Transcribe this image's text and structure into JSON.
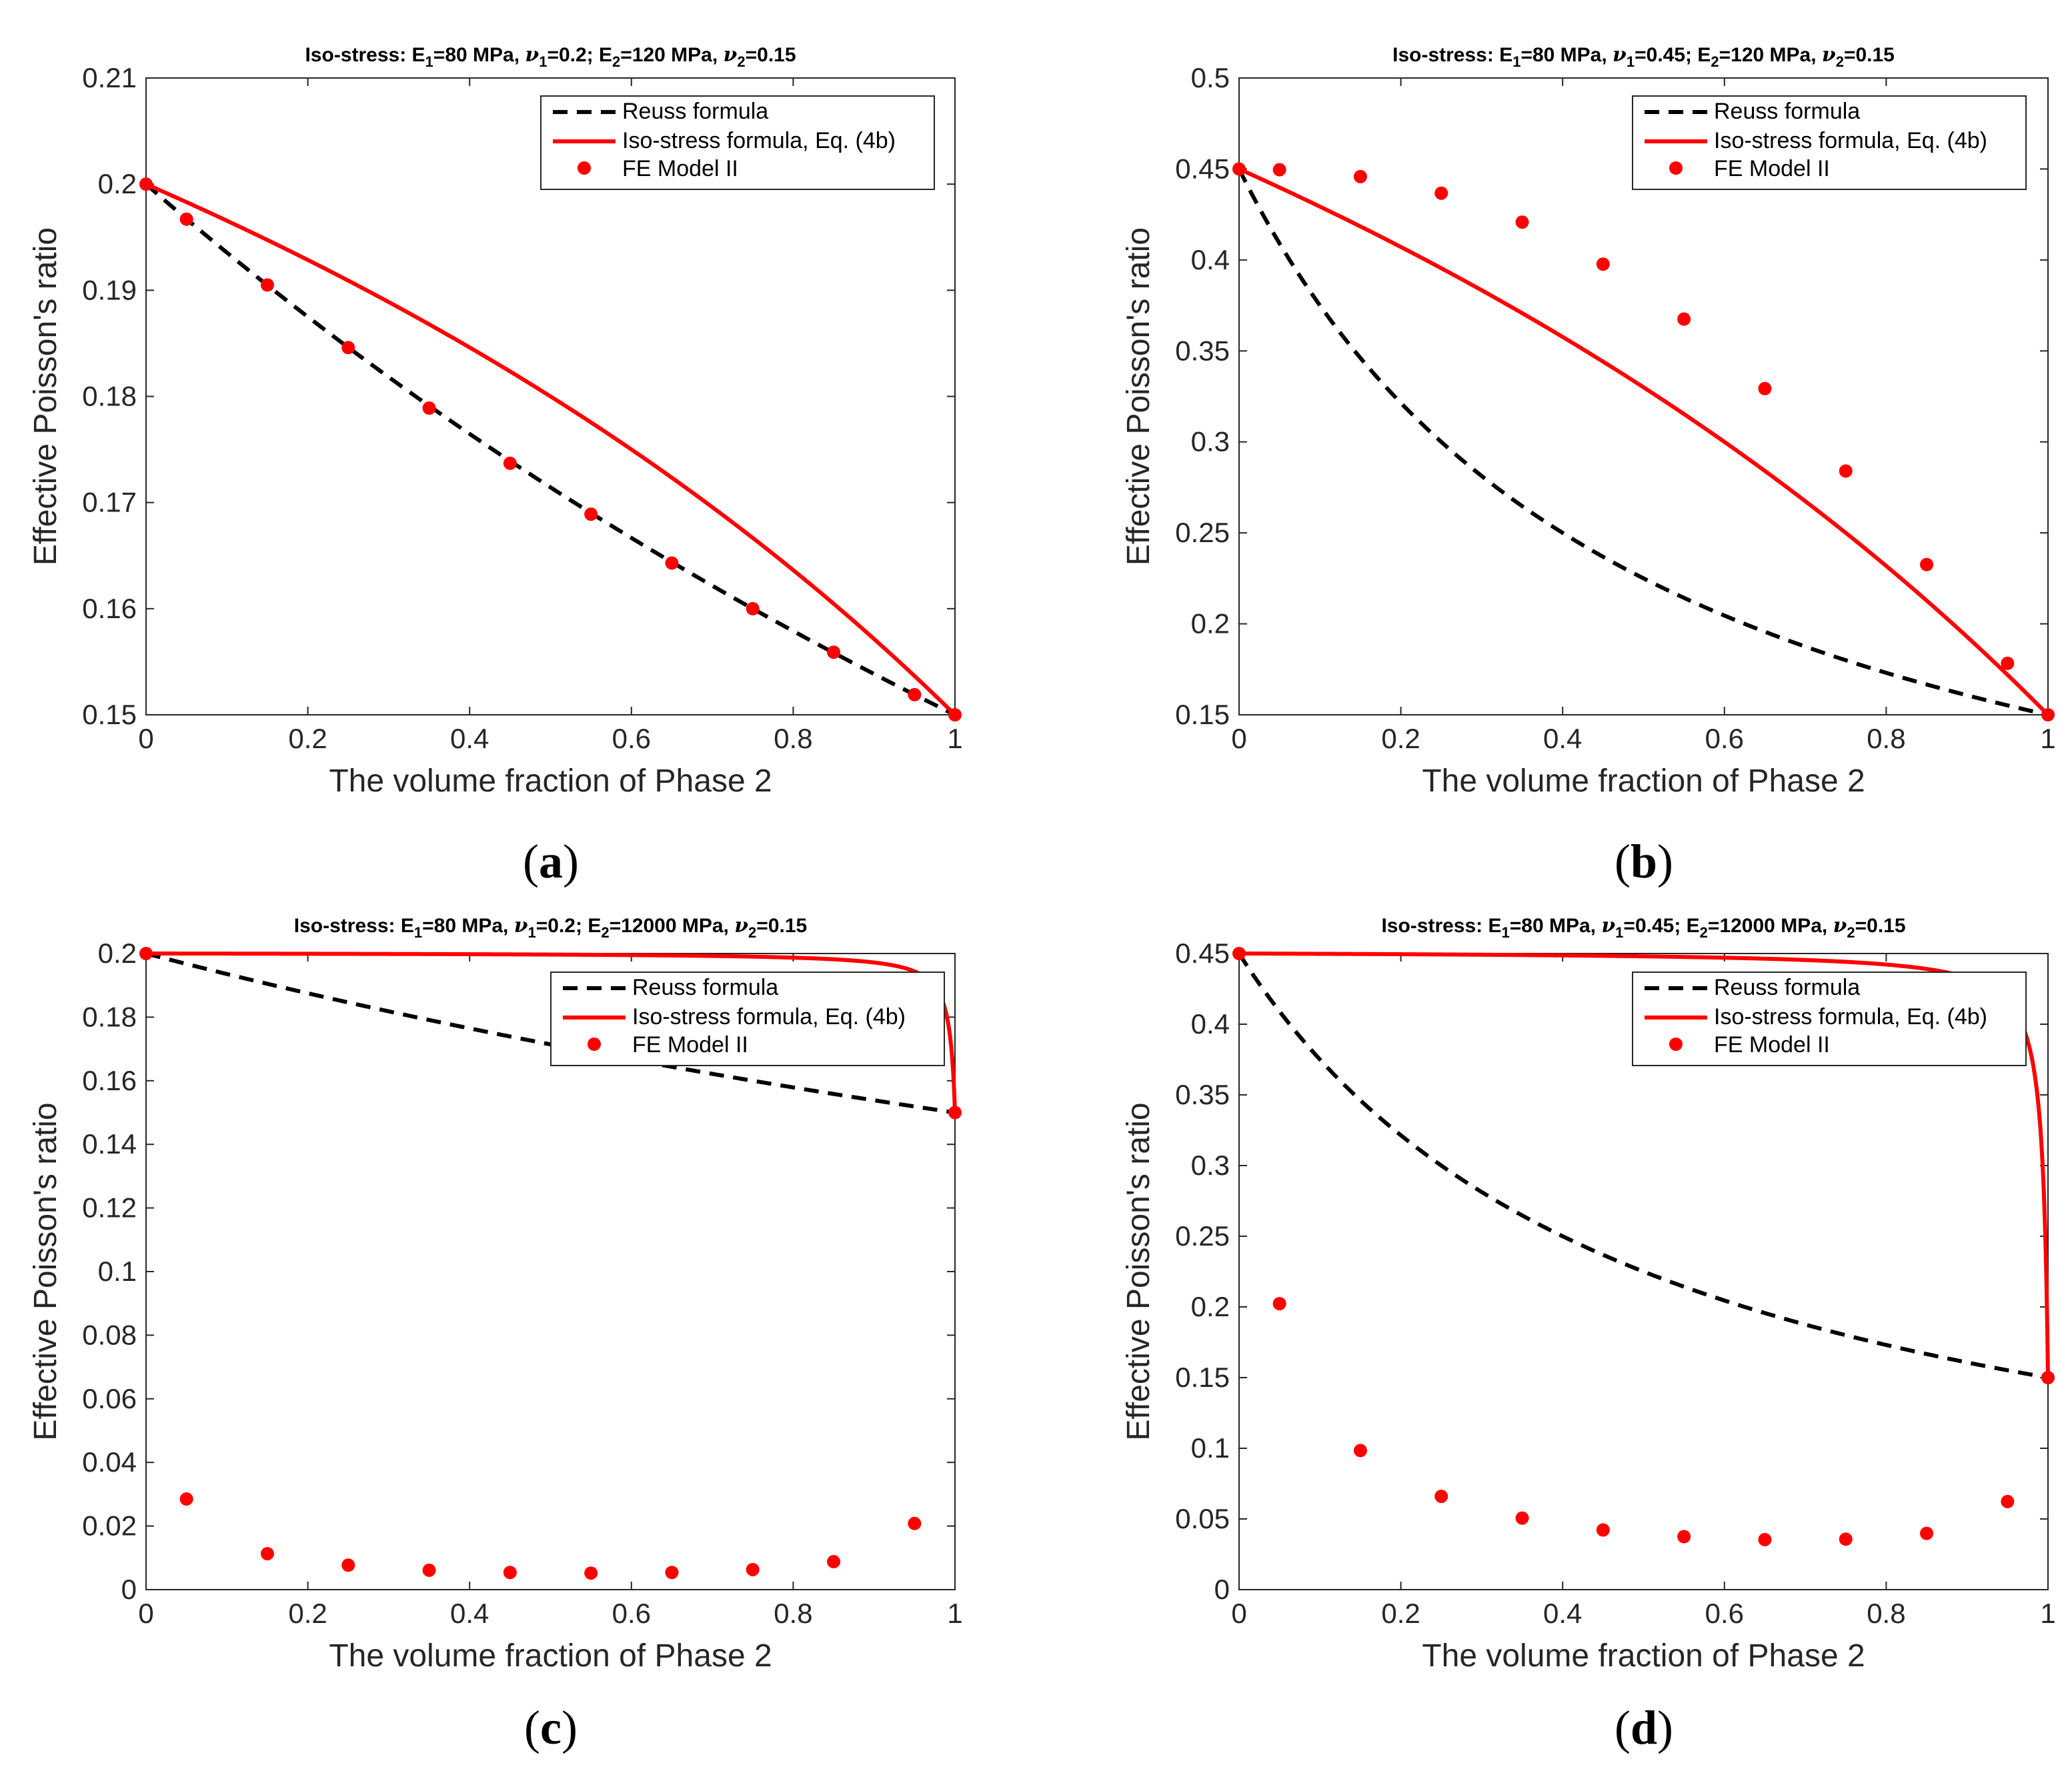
{
  "legend": {
    "reuss": "Reuss formula",
    "isostress": "Iso-stress formula, Eq. (4b)",
    "fe": "FE Model II"
  },
  "colors": {
    "reuss": "#000000",
    "isostress": "#ff0000",
    "fe": "#ff0000",
    "axis": "#262626"
  },
  "chart_data": [
    {
      "id": "a",
      "type": "line",
      "label_letter": "a",
      "title": {
        "prefix": "Iso-stress: E",
        "E1": "=80 MPa, ",
        "nu1": "=0.2; E",
        "E2": "=120 MPa, ",
        "nu2": "=0.15"
      },
      "title_text": "Iso-stress: E1=80 MPa, ν1=0.2; E2=120 MPa, ν2=0.15",
      "xlabel": "The volume fraction of Phase 2",
      "ylabel": "Effective Poisson's ratio",
      "xlim": [
        0,
        1
      ],
      "ylim": [
        0.15,
        0.21
      ],
      "xticks": [
        "0",
        "0.2",
        "0.4",
        "0.6",
        "0.8",
        "1"
      ],
      "yticks": [
        "0.15",
        "0.16",
        "0.17",
        "0.18",
        "0.19",
        "0.2",
        "0.21"
      ],
      "E1": 80,
      "nu1": 0.2,
      "E2": 120,
      "nu2": 0.15,
      "fe_x": [
        0,
        0.05,
        0.15,
        0.25,
        0.35,
        0.45,
        0.55,
        0.65,
        0.75,
        0.85,
        0.95,
        1
      ],
      "fe_y": [
        0.2,
        0.1967,
        0.1905,
        0.1846,
        0.1789,
        0.1737,
        0.1689,
        0.1643,
        0.16,
        0.1559,
        0.1519,
        0.15
      ],
      "legend_position": "top-right"
    },
    {
      "id": "b",
      "type": "line",
      "label_letter": "b",
      "title": {
        "prefix": "Iso-stress: E",
        "E1": "=80 MPa, ",
        "nu1": "=0.45; E",
        "E2": "=120 MPa, ",
        "nu2": "=0.15"
      },
      "title_text": "Iso-stress: E1=80 MPa, ν1=0.45; E2=120 MPa, ν2=0.15",
      "xlabel": "The volume fraction of Phase 2",
      "ylabel": "Effective Poisson's ratio",
      "xlim": [
        0,
        1
      ],
      "ylim": [
        0.15,
        0.5
      ],
      "xticks": [
        "0",
        "0.2",
        "0.4",
        "0.6",
        "0.8",
        "1"
      ],
      "yticks": [
        "0.15",
        "0.2",
        "0.25",
        "0.3",
        "0.35",
        "0.4",
        "0.45",
        "0.5"
      ],
      "E1": 80,
      "nu1": 0.45,
      "E2": 120,
      "nu2": 0.15,
      "fe_x": [
        0,
        0.05,
        0.15,
        0.25,
        0.35,
        0.45,
        0.55,
        0.65,
        0.75,
        0.85,
        0.95,
        1
      ],
      "fe_y": [
        0.45,
        0.4496,
        0.4458,
        0.4367,
        0.4208,
        0.3977,
        0.3675,
        0.3293,
        0.284,
        0.2326,
        0.1783,
        0.15
      ],
      "legend_position": "top-right"
    },
    {
      "id": "c",
      "type": "line",
      "label_letter": "c",
      "title": {
        "prefix": "Iso-stress: E",
        "E1": "=80 MPa, ",
        "nu1": "=0.2; E",
        "E2": "=12000 MPa, ",
        "nu2": "=0.15"
      },
      "title_text": "Iso-stress: E1=80 MPa, ν1=0.2; E2=12000 MPa, ν2=0.15",
      "xlabel": "The volume fraction of Phase 2",
      "ylabel": "Effective Poisson's ratio",
      "xlim": [
        0,
        1
      ],
      "ylim": [
        0,
        0.2
      ],
      "xticks": [
        "0",
        "0.2",
        "0.4",
        "0.6",
        "0.8",
        "1"
      ],
      "yticks": [
        "0",
        "0.02",
        "0.04",
        "0.06",
        "0.08",
        "0.1",
        "0.12",
        "0.14",
        "0.16",
        "0.18",
        "0.2"
      ],
      "E1": 80,
      "nu1": 0.2,
      "E2": 12000,
      "nu2": 0.15,
      "fe_x": [
        0,
        0.05,
        0.15,
        0.25,
        0.35,
        0.45,
        0.55,
        0.65,
        0.75,
        0.85,
        0.95,
        1
      ],
      "fe_y": [
        0.2,
        0.0285,
        0.0113,
        0.0077,
        0.0061,
        0.0054,
        0.0052,
        0.0054,
        0.0063,
        0.0088,
        0.0208,
        0.15
      ],
      "legend_position": "top-right"
    },
    {
      "id": "d",
      "type": "line",
      "label_letter": "d",
      "title": {
        "prefix": "Iso-stress: E",
        "E1": "=80 MPa, ",
        "nu1": "=0.45; E",
        "E2": "=12000 MPa, ",
        "nu2": "=0.15"
      },
      "title_text": "Iso-stress: E1=80 MPa, ν1=0.45; E2=12000 MPa, ν2=0.15",
      "xlabel": "The volume fraction of Phase 2",
      "ylabel": "Effective Poisson's ratio",
      "xlim": [
        0,
        1
      ],
      "ylim": [
        0,
        0.45
      ],
      "xticks": [
        "0",
        "0.2",
        "0.4",
        "0.6",
        "0.8",
        "1"
      ],
      "yticks": [
        "0",
        "0.05",
        "0.1",
        "0.15",
        "0.2",
        "0.25",
        "0.3",
        "0.35",
        "0.4",
        "0.45"
      ],
      "E1": 80,
      "nu1": 0.45,
      "E2": 12000,
      "nu2": 0.15,
      "fe_x": [
        0,
        0.05,
        0.15,
        0.25,
        0.35,
        0.45,
        0.55,
        0.65,
        0.75,
        0.85,
        0.95,
        1
      ],
      "fe_y": [
        0.45,
        0.2023,
        0.0984,
        0.066,
        0.0506,
        0.0422,
        0.0375,
        0.0354,
        0.0357,
        0.0398,
        0.0623,
        0.15
      ],
      "legend_position": "top-right"
    }
  ]
}
